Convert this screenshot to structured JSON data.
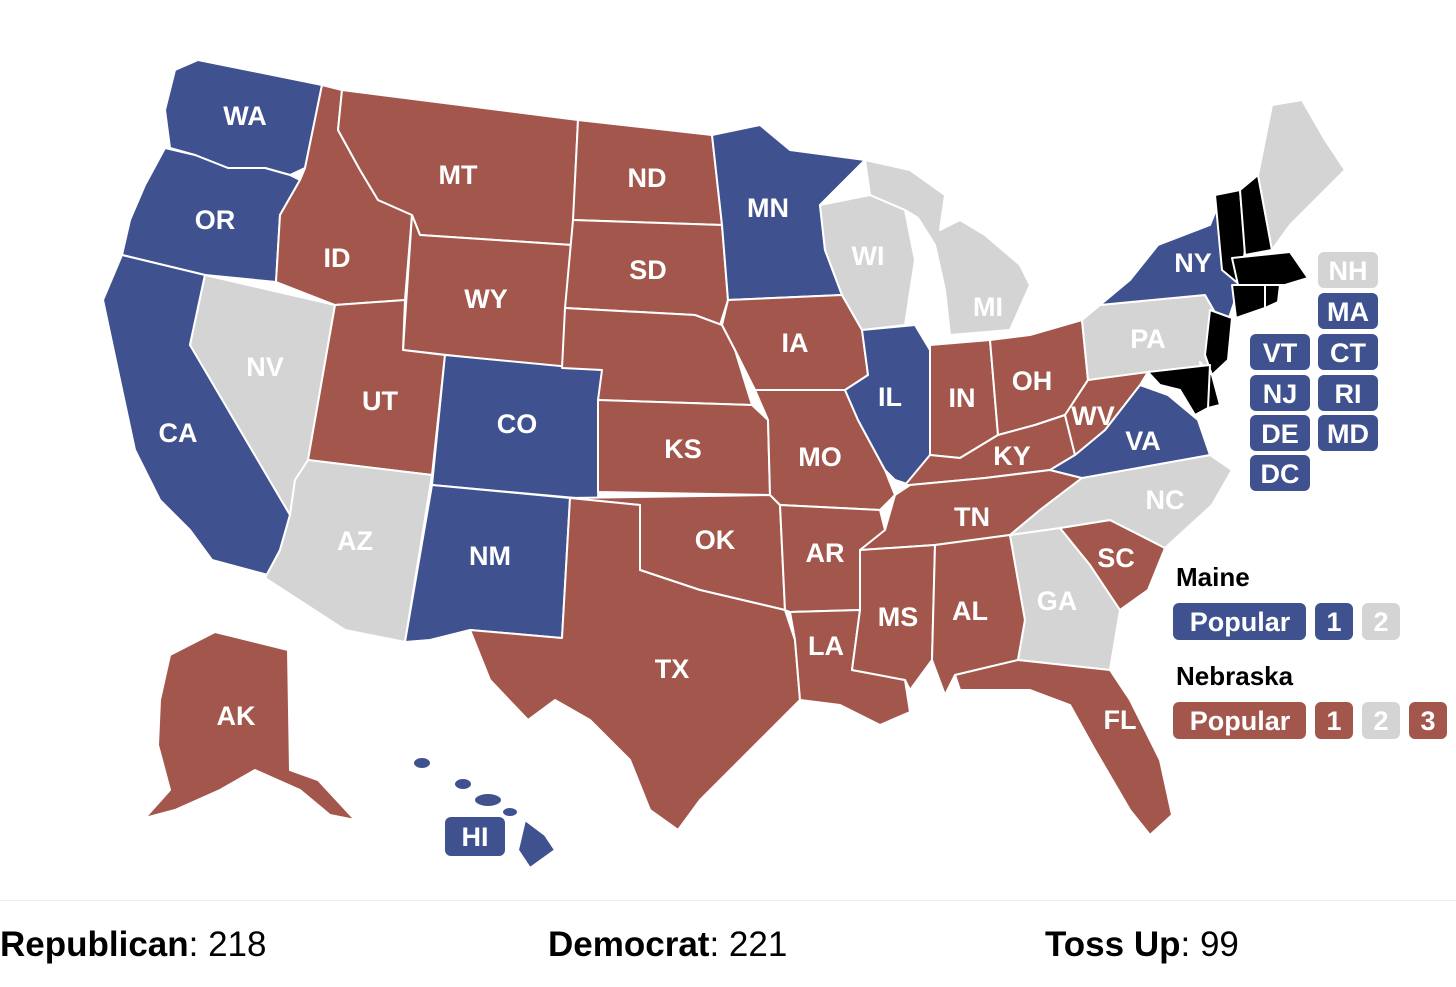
{
  "colors": {
    "R": "#a3574c",
    "D": "#3f528f",
    "T": "#d4d4d4"
  },
  "states": {
    "WA": {
      "label": "WA",
      "party": "D"
    },
    "OR": {
      "label": "OR",
      "party": "D"
    },
    "CA": {
      "label": "CA",
      "party": "D"
    },
    "NV": {
      "label": "NV",
      "party": "T"
    },
    "ID": {
      "label": "ID",
      "party": "R"
    },
    "MT": {
      "label": "MT",
      "party": "R"
    },
    "WY": {
      "label": "WY",
      "party": "R"
    },
    "UT": {
      "label": "UT",
      "party": "R"
    },
    "AZ": {
      "label": "AZ",
      "party": "T"
    },
    "CO": {
      "label": "CO",
      "party": "D"
    },
    "NM": {
      "label": "NM",
      "party": "D"
    },
    "ND": {
      "label": "ND",
      "party": "R"
    },
    "SD": {
      "label": "SD",
      "party": "R"
    },
    "NE": {
      "label": "",
      "party": "R"
    },
    "KS": {
      "label": "KS",
      "party": "R"
    },
    "OK": {
      "label": "OK",
      "party": "R"
    },
    "TX": {
      "label": "TX",
      "party": "R"
    },
    "MN": {
      "label": "MN",
      "party": "D"
    },
    "IA": {
      "label": "IA",
      "party": "R"
    },
    "MO": {
      "label": "MO",
      "party": "R"
    },
    "AR": {
      "label": "AR",
      "party": "R"
    },
    "LA": {
      "label": "LA",
      "party": "R"
    },
    "WI": {
      "label": "WI",
      "party": "T"
    },
    "IL": {
      "label": "IL",
      "party": "D"
    },
    "MI": {
      "label": "MI",
      "party": "T"
    },
    "IN": {
      "label": "IN",
      "party": "R"
    },
    "OH": {
      "label": "OH",
      "party": "R"
    },
    "KY": {
      "label": "KY",
      "party": "R"
    },
    "TN": {
      "label": "TN",
      "party": "R"
    },
    "MS": {
      "label": "MS",
      "party": "R"
    },
    "AL": {
      "label": "AL",
      "party": "R"
    },
    "GA": {
      "label": "GA",
      "party": "T"
    },
    "FL": {
      "label": "FL",
      "party": "R"
    },
    "SC": {
      "label": "SC",
      "party": "R"
    },
    "NC": {
      "label": "NC",
      "party": "T"
    },
    "VA": {
      "label": "VA",
      "party": "D"
    },
    "WV": {
      "label": "WV",
      "party": "R"
    },
    "PA": {
      "label": "PA",
      "party": "T"
    },
    "NY": {
      "label": "NY",
      "party": "D"
    },
    "ME": {
      "label": "",
      "party": "T"
    },
    "AK": {
      "label": "AK",
      "party": "R"
    },
    "HI": {
      "label": "HI",
      "party": "D"
    }
  },
  "small_states": [
    {
      "label": "NH",
      "party": "T"
    },
    {
      "label": "MA",
      "party": "D"
    },
    {
      "label": "VT",
      "party": "D"
    },
    {
      "label": "CT",
      "party": "D"
    },
    {
      "label": "NJ",
      "party": "D"
    },
    {
      "label": "RI",
      "party": "D"
    },
    {
      "label": "DE",
      "party": "D"
    },
    {
      "label": "MD",
      "party": "D"
    },
    {
      "label": "DC",
      "party": "D"
    }
  ],
  "maine": {
    "title": "Maine",
    "districts": [
      {
        "label": "Popular",
        "party": "D"
      },
      {
        "label": "1",
        "party": "D"
      },
      {
        "label": "2",
        "party": "T"
      }
    ]
  },
  "nebraska": {
    "title": "Nebraska",
    "districts": [
      {
        "label": "Popular",
        "party": "R"
      },
      {
        "label": "1",
        "party": "R"
      },
      {
        "label": "2",
        "party": "T"
      },
      {
        "label": "3",
        "party": "R"
      }
    ]
  },
  "totals": {
    "republican": {
      "label": "Republican",
      "value": "218"
    },
    "democrat": {
      "label": "Democrat",
      "value": "221"
    },
    "tossup": {
      "label": "Toss Up",
      "value": "99"
    }
  }
}
